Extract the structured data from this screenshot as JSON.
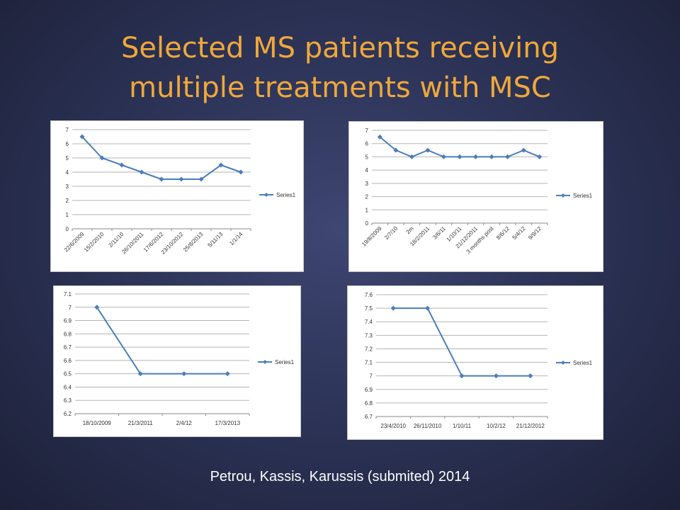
{
  "slide": {
    "title_line1": "Selected MS patients receiving",
    "title_line2": "multiple treatments with MSC",
    "citation": "Petrou, Kassis, Karussis (submited) 2014"
  },
  "colors": {
    "title": "#f0a83a",
    "series": "#4a7ebb",
    "grid": "#b5b5b5",
    "background": "#2d3458"
  },
  "chart_data": [
    {
      "type": "line",
      "title": "",
      "categories": [
        "22/6/2009",
        "15/2/2010",
        "2/11/10",
        "26/10/2011",
        "17/6/2012",
        "23/10/2012",
        "25/8/2013",
        "5/11/13",
        "1/1/14"
      ],
      "series": [
        {
          "name": "Series1",
          "values": [
            6.5,
            5,
            4.5,
            4,
            3.5,
            3.5,
            3.5,
            4.5,
            4
          ]
        }
      ],
      "ylim": [
        0,
        7
      ],
      "yticks": [
        "0",
        "1",
        "2",
        "3",
        "4",
        "5",
        "6",
        "7"
      ],
      "x_label_rotation": "rotated",
      "grid": true,
      "legend": "right"
    },
    {
      "type": "line",
      "title": "",
      "categories": [
        "19/8/2009",
        "2/7/10",
        "2m",
        "18/2/2011",
        "3/6/11",
        "1/10/11",
        "21/12/2011",
        "3 months post",
        "8/6/12",
        "5/4/12",
        "9/9/12"
      ],
      "series": [
        {
          "name": "Series1",
          "values": [
            6.5,
            5.5,
            5,
            5.5,
            5,
            5,
            5,
            5,
            5,
            5.5,
            5
          ]
        }
      ],
      "ylim": [
        0,
        7
      ],
      "yticks": [
        "0",
        "1",
        "2",
        "3",
        "4",
        "5",
        "6",
        "7"
      ],
      "x_label_rotation": "rotated",
      "grid": true,
      "legend": "right"
    },
    {
      "type": "line",
      "title": "",
      "categories": [
        "18/10/2009",
        "21/3/2011",
        "2/4/12",
        "17/3/2013"
      ],
      "series": [
        {
          "name": "Series1",
          "values": [
            7,
            6.5,
            6.5,
            6.5
          ]
        }
      ],
      "ylim": [
        6.2,
        7.1
      ],
      "yticks": [
        "6.2",
        "6.3",
        "6.4",
        "6.5",
        "6.6",
        "6.7",
        "6.8",
        "6.9",
        "7",
        "7.1"
      ],
      "x_label_rotation": "horizontal",
      "grid": true,
      "legend": "right"
    },
    {
      "type": "line",
      "title": "",
      "categories": [
        "23/4/2010",
        "26/11/2010",
        "1/10/11",
        "10/2/12",
        "21/12/2012"
      ],
      "series": [
        {
          "name": "Series1",
          "values": [
            7.5,
            7.5,
            7,
            7,
            7
          ]
        }
      ],
      "ylim": [
        6.7,
        7.6
      ],
      "yticks": [
        "6.7",
        "6.8",
        "6.9",
        "7",
        "7.1",
        "7.2",
        "7.3",
        "7.4",
        "7.5",
        "7.6"
      ],
      "x_label_rotation": "horizontal",
      "grid": true,
      "legend": "right"
    }
  ]
}
